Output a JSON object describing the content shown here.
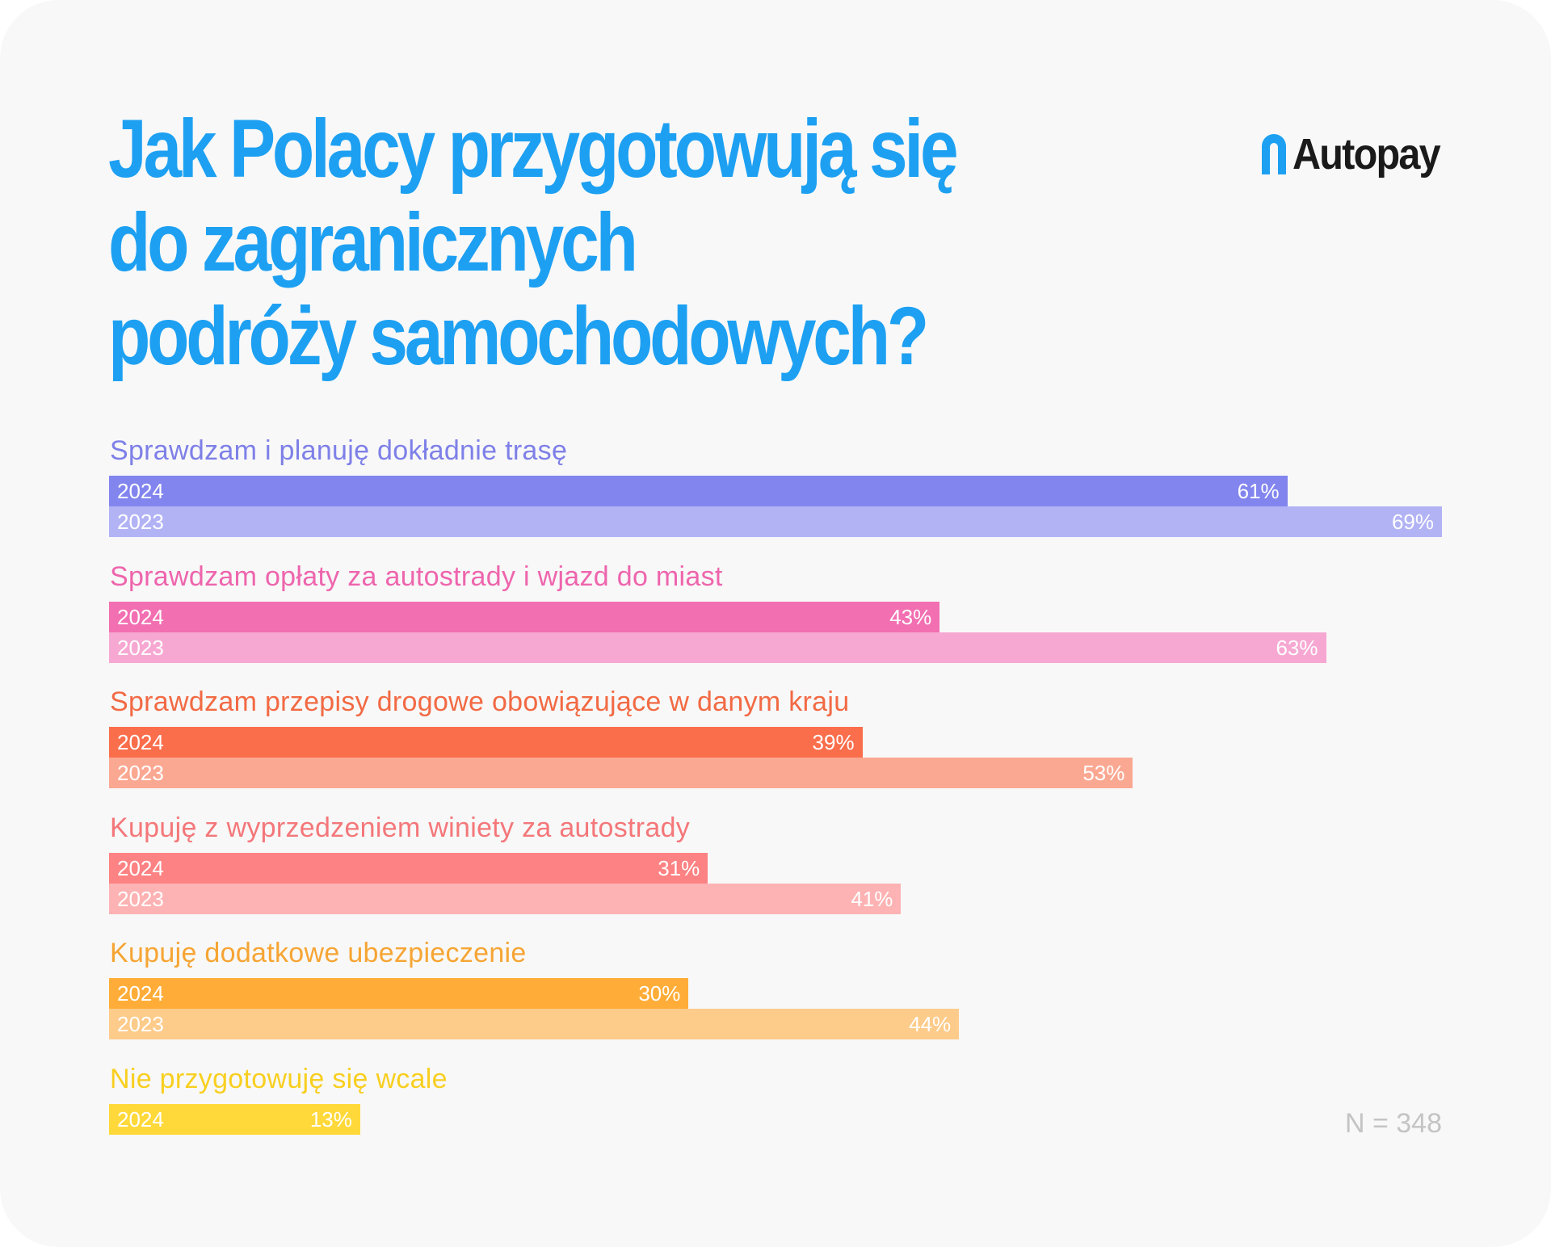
{
  "title_lines": [
    "Jak Polacy przygotowują się",
    "do zagranicznych",
    "podróży samochodowych?"
  ],
  "logo": {
    "text": "Autopay",
    "icon": "autopay-arch-icon",
    "icon_color": "#1da0f2"
  },
  "sample_note": "N = 348",
  "colors": {
    "background": "#f8f8f8",
    "title": "#1da0f2",
    "note": "#c4c4c4"
  },
  "chart_data": {
    "type": "bar",
    "orientation": "horizontal",
    "title": "Jak Polacy przygotowują się do zagranicznych podróży samochodowych?",
    "unit": "%",
    "xlim": [
      0,
      69
    ],
    "grid": false,
    "categories": [
      {
        "label": "Sprawdzam i planuję dokładnie trasę",
        "label_color": "#7e80e8",
        "bars": [
          {
            "year": "2024",
            "value": 61,
            "value_label": "61%",
            "color": "#8285ee"
          },
          {
            "year": "2023",
            "value": 69,
            "value_label": "69%",
            "color": "#b2b3f5"
          }
        ]
      },
      {
        "label": "Sprawdzam opłaty za autostrady i wjazd do miast",
        "label_color": "#ee65ad",
        "bars": [
          {
            "year": "2024",
            "value": 43,
            "value_label": "43%",
            "color": "#f26fb2"
          },
          {
            "year": "2023",
            "value": 63,
            "value_label": "63%",
            "color": "#f6a8d2"
          }
        ]
      },
      {
        "label": "Sprawdzam przepisy drogowe obowiązujące w danym kraju",
        "label_color": "#f26a44",
        "bars": [
          {
            "year": "2024",
            "value": 39,
            "value_label": "39%",
            "color": "#fa6e4c"
          },
          {
            "year": "2023",
            "value": 53,
            "value_label": "53%",
            "color": "#fba892"
          }
        ]
      },
      {
        "label": "Kupuję z wyprzedzeniem winiety za autostrady",
        "label_color": "#f4777a",
        "bars": [
          {
            "year": "2024",
            "value": 31,
            "value_label": "31%",
            "color": "#fd8283"
          },
          {
            "year": "2023",
            "value": 41,
            "value_label": "41%",
            "color": "#fdb3b3"
          }
        ]
      },
      {
        "label": "Kupuję dodatkowe ubezpieczenie",
        "label_color": "#f6a534",
        "bars": [
          {
            "year": "2024",
            "value": 30,
            "value_label": "30%",
            "color": "#ffad38"
          },
          {
            "year": "2023",
            "value": 44,
            "value_label": "44%",
            "color": "#fdcb8a"
          }
        ]
      },
      {
        "label": "Nie przygotowuję się wcale",
        "label_color": "#f8cf20",
        "bars": [
          {
            "year": "2024",
            "value": 13,
            "value_label": "13%",
            "color": "#ffd93a"
          }
        ]
      }
    ]
  }
}
